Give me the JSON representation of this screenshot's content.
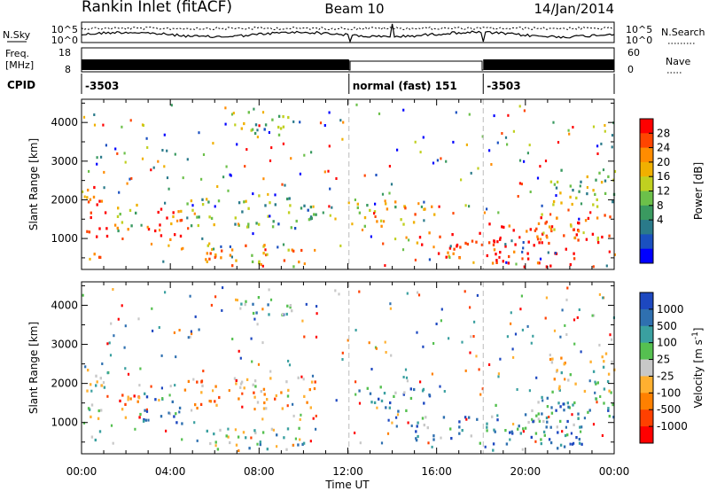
{
  "header": {
    "station": "Rankin Inlet (fitACF)",
    "beam": "Beam 10",
    "date": "14/Jan/2014"
  },
  "noise_panel": {
    "left_label": "N.Sky",
    "right_label": "N.Search",
    "left_ticks": [
      "10^5",
      "10^0"
    ],
    "right_ticks": [
      "10^5",
      "10^0"
    ]
  },
  "freq_panel": {
    "left_label_line1": "Freq.",
    "left_label_line2": "[MHz]",
    "right_label": "Nave",
    "left_ticks": [
      "18",
      "8"
    ],
    "right_ticks": [
      "60",
      "0"
    ]
  },
  "cpid_panel": {
    "label": "CPID",
    "segments": [
      {
        "start_hour": 0,
        "end_hour": 12.05,
        "text": "-3503"
      },
      {
        "start_hour": 12.05,
        "end_hour": 18.1,
        "text": "normal (fast) 151"
      },
      {
        "start_hour": 18.1,
        "end_hour": 24,
        "text": "-3503"
      }
    ]
  },
  "xaxis": {
    "title": "Time UT",
    "ticks": [
      "00:00",
      "04:00",
      "08:00",
      "12:00",
      "16:00",
      "20:00",
      "00:00"
    ]
  },
  "chart_data": [
    {
      "type": "heatmap",
      "quantity": "Power",
      "xlabel": "Time UT",
      "ylabel": "Slant Range [km]",
      "xlim": [
        0,
        24
      ],
      "ylim": [
        200,
        4600
      ],
      "yticks": [
        "1000",
        "2000",
        "3000",
        "4000"
      ],
      "colorbar": {
        "label": "Power [dB]",
        "ticks": [
          "28",
          "24",
          "20",
          "16",
          "12",
          "8",
          "4"
        ],
        "colors": [
          "#ff0000",
          "#ff4500",
          "#ff8c00",
          "#f0b000",
          "#c0d020",
          "#6cc04a",
          "#3a9a60",
          "#2a7a8a",
          "#1a50c0",
          "#0000ff"
        ]
      },
      "regions": [
        {
          "t": [
            0.2,
            1.2
          ],
          "r": [
            500,
            2400
          ],
          "level": 0.9
        },
        {
          "t": [
            1.2,
            2.6
          ],
          "r": [
            1100,
            1900
          ],
          "level": 0.55
        },
        {
          "t": [
            2.6,
            4.5
          ],
          "r": [
            1000,
            1800
          ],
          "level": 0.85
        },
        {
          "t": [
            4.5,
            6.2
          ],
          "r": [
            1300,
            2100
          ],
          "level": 0.5
        },
        {
          "t": [
            5.5,
            10
          ],
          "r": [
            300,
            900
          ],
          "level": 0.7
        },
        {
          "t": [
            6.8,
            10.6
          ],
          "r": [
            1300,
            2200
          ],
          "level": 0.4
        },
        {
          "t": [
            12.3,
            14.6
          ],
          "r": [
            1300,
            2000
          ],
          "level": 0.55
        },
        {
          "t": [
            15,
            18
          ],
          "r": [
            500,
            1200
          ],
          "level": 0.85
        },
        {
          "t": [
            14.5,
            16
          ],
          "r": [
            1400,
            1900
          ],
          "level": 0.75
        },
        {
          "t": [
            18.2,
            22.5
          ],
          "r": [
            300,
            1500
          ],
          "level": 0.95
        },
        {
          "t": [
            20.5,
            24
          ],
          "r": [
            900,
            1700
          ],
          "level": 0.8
        },
        {
          "t": [
            21,
            24
          ],
          "r": [
            1800,
            2800
          ],
          "level": 0.45
        },
        {
          "t": [
            7,
            9.5
          ],
          "r": [
            3700,
            4300
          ],
          "level": 0.4
        }
      ]
    },
    {
      "type": "heatmap",
      "quantity": "Velocity",
      "xlabel": "Time UT",
      "ylabel": "Slant Range [km]",
      "xlim": [
        0,
        24
      ],
      "ylim": [
        200,
        4600
      ],
      "yticks": [
        "1000",
        "2000",
        "3000",
        "4000"
      ],
      "colorbar": {
        "label": "Velocity [m s^-1]",
        "ticks": [
          "1000",
          "500",
          "100",
          "25",
          "-25",
          "-100",
          "-500",
          "-1000"
        ],
        "colors": [
          "#1d48c0",
          "#2f70b0",
          "#3aa0a0",
          "#55c050",
          "#c8c8c8",
          "#ffb030",
          "#ff8000",
          "#ff4000",
          "#ff0000"
        ]
      },
      "regions": [
        {
          "t": [
            0.2,
            1.2
          ],
          "r": [
            500,
            2400
          ],
          "level": 0.55
        },
        {
          "t": [
            1.2,
            2.6
          ],
          "r": [
            1100,
            1900
          ],
          "level": 0.25
        },
        {
          "t": [
            2.6,
            4.5
          ],
          "r": [
            1000,
            1800
          ],
          "level": 0.7
        },
        {
          "t": [
            4.5,
            6.2
          ],
          "r": [
            1300,
            2100
          ],
          "level": 0.3
        },
        {
          "t": [
            5.5,
            10
          ],
          "r": [
            300,
            900
          ],
          "level": 0.6
        },
        {
          "t": [
            6.8,
            10.6
          ],
          "r": [
            1300,
            2200
          ],
          "level": 0.35
        },
        {
          "t": [
            12.3,
            14.6
          ],
          "r": [
            1300,
            2000
          ],
          "level": 0.75
        },
        {
          "t": [
            15,
            18
          ],
          "r": [
            500,
            1200
          ],
          "level": 0.7
        },
        {
          "t": [
            14.5,
            16
          ],
          "r": [
            1400,
            1900
          ],
          "level": 0.8
        },
        {
          "t": [
            18.2,
            22.5
          ],
          "r": [
            300,
            1500
          ],
          "level": 0.75
        },
        {
          "t": [
            20.5,
            24
          ],
          "r": [
            900,
            1700
          ],
          "level": 0.7
        },
        {
          "t": [
            21,
            24
          ],
          "r": [
            1800,
            2800
          ],
          "level": 0.5
        },
        {
          "t": [
            7,
            9.5
          ],
          "r": [
            3700,
            4300
          ],
          "level": 0.7
        }
      ]
    }
  ]
}
